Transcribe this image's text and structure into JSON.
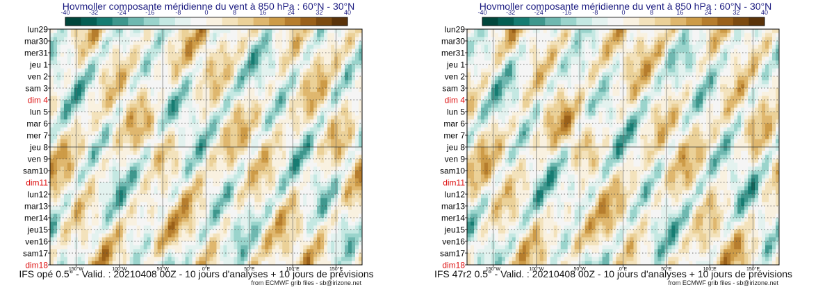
{
  "colors": {
    "title": "#1a1a80",
    "weekend": "#dd1111",
    "palette": [
      "#01463c",
      "#055e53",
      "#167c72",
      "#3e978d",
      "#6fb8b0",
      "#9ad4cc",
      "#c4e8e2",
      "#e3f2ef",
      "#f5f5f5",
      "#f9f1e0",
      "#f3e2bb",
      "#ebd198",
      "#dfb76e",
      "#cd9b47",
      "#b67d2d",
      "#9a6019",
      "#7c4a10",
      "#5a330a"
    ]
  },
  "chart_data": [
    {
      "type": "heatmap",
      "title": "Hovmoller composante méridienne du vent à 850 hPa : 60°N - 30°N",
      "caption": "IFS opé 0.5° - Valid. : 20210408 00Z - 10 jours d'analyses + 10 jours de prévisions",
      "credit": "from ECMWF grib files - sb@irizone.net",
      "colorbar_ticks": [
        "-40",
        "-32",
        "-24",
        "-16",
        "-8",
        "0",
        "8",
        "16",
        "24",
        "32",
        "40"
      ],
      "color_range": [
        -40,
        40
      ],
      "xlim": [
        180,
        -180
      ],
      "x_ticks": [
        {
          "label": "150°W",
          "value": 150
        },
        {
          "label": "100°W",
          "value": 100
        },
        {
          "label": "50°W",
          "value": 50
        },
        {
          "label": "0°E",
          "value": 0
        },
        {
          "label": "50°E",
          "value": -50
        },
        {
          "label": "100°E",
          "value": -100
        },
        {
          "label": "150°E",
          "value": -150
        }
      ],
      "y_ticks": [
        {
          "label": "lun29",
          "weekend": false
        },
        {
          "label": "mar30",
          "weekend": false
        },
        {
          "label": "mer31",
          "weekend": false
        },
        {
          "label": "jeu 1",
          "weekend": false
        },
        {
          "label": "ven 2",
          "weekend": false
        },
        {
          "label": "sam 3",
          "weekend": false
        },
        {
          "label": "dim 4",
          "weekend": true
        },
        {
          "label": "lun 5",
          "weekend": false
        },
        {
          "label": "mar 6",
          "weekend": false
        },
        {
          "label": "mer 7",
          "weekend": false
        },
        {
          "label": "jeu 8",
          "weekend": false
        },
        {
          "label": "ven 9",
          "weekend": false
        },
        {
          "label": "sam10",
          "weekend": false
        },
        {
          "label": "dim11",
          "weekend": true
        },
        {
          "label": "lun12",
          "weekend": false
        },
        {
          "label": "mar13",
          "weekend": false
        },
        {
          "label": "mer14",
          "weekend": false
        },
        {
          "label": "jeu15",
          "weekend": false
        },
        {
          "label": "ven16",
          "weekend": false
        },
        {
          "label": "sam17",
          "weekend": false
        },
        {
          "label": "dim18",
          "weekend": true
        }
      ],
      "analysis_boundary": "jeu 8",
      "field_seed": 1
    },
    {
      "type": "heatmap",
      "title": "Hovmoller composante méridienne du vent à 850 hPa : 60°N - 30°N",
      "caption": "IFS 47r2 0.5° - Valid. : 20210408 00Z - 10 jours d'analyses + 10 jours de prévisions",
      "credit": "from ECMWF grib files - sb@irizone.net",
      "colorbar_ticks": [
        "-40",
        "-32",
        "-24",
        "-16",
        "-8",
        "0",
        "8",
        "16",
        "24",
        "32",
        "40"
      ],
      "color_range": [
        -40,
        40
      ],
      "xlim": [
        180,
        -180
      ],
      "x_ticks": [
        {
          "label": "150°W",
          "value": 150
        },
        {
          "label": "100°W",
          "value": 100
        },
        {
          "label": "50°W",
          "value": 50
        },
        {
          "label": "0°E",
          "value": 0
        },
        {
          "label": "50°E",
          "value": -50
        },
        {
          "label": "100°E",
          "value": -100
        },
        {
          "label": "150°E",
          "value": -150
        }
      ],
      "y_ticks": [
        {
          "label": "lun29",
          "weekend": false
        },
        {
          "label": "mar30",
          "weekend": false
        },
        {
          "label": "mer31",
          "weekend": false
        },
        {
          "label": "jeu 1",
          "weekend": false
        },
        {
          "label": "ven 2",
          "weekend": false
        },
        {
          "label": "sam 3",
          "weekend": false
        },
        {
          "label": "dim 4",
          "weekend": true
        },
        {
          "label": "lun 5",
          "weekend": false
        },
        {
          "label": "mar 6",
          "weekend": false
        },
        {
          "label": "mer 7",
          "weekend": false
        },
        {
          "label": "jeu 8",
          "weekend": false
        },
        {
          "label": "ven 9",
          "weekend": false
        },
        {
          "label": "sam10",
          "weekend": false
        },
        {
          "label": "dim11",
          "weekend": true
        },
        {
          "label": "lun12",
          "weekend": false
        },
        {
          "label": "mar13",
          "weekend": false
        },
        {
          "label": "mer14",
          "weekend": false
        },
        {
          "label": "jeu15",
          "weekend": false
        },
        {
          "label": "ven16",
          "weekend": false
        },
        {
          "label": "sam17",
          "weekend": false
        },
        {
          "label": "dim18",
          "weekend": true
        }
      ],
      "analysis_boundary": "jeu 8",
      "field_seed": 2
    }
  ]
}
